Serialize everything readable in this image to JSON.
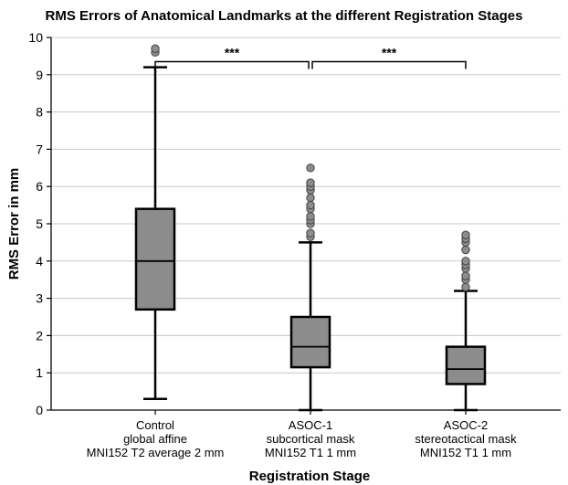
{
  "chart_data": {
    "type": "box",
    "title": "RMS Errors of Anatomical Landmarks at the different Registration Stages",
    "xlabel": "Registration Stage",
    "ylabel": "RMS Error in mm",
    "ylim": [
      0,
      10
    ],
    "yticks": [
      0,
      1,
      2,
      3,
      4,
      5,
      6,
      7,
      8,
      9,
      10
    ],
    "grid": "horizontal",
    "box_color": "#8c8c8c",
    "outlier_color": "#8c8c8c",
    "categories": [
      {
        "lines": [
          "Control",
          "global affine",
          "MNI152 T2 average 2 mm"
        ]
      },
      {
        "lines": [
          "ASOC-1",
          "subcortical mask",
          "MNI152 T1 1 mm"
        ]
      },
      {
        "lines": [
          "ASOC-2",
          "stereotactical mask",
          "MNI152 T1 1 mm"
        ]
      }
    ],
    "boxes": [
      {
        "min": 0.3,
        "q1": 2.7,
        "median": 4.0,
        "q3": 5.4,
        "max": 9.2,
        "outliers": [
          9.6,
          9.7
        ]
      },
      {
        "min": 0.0,
        "q1": 1.15,
        "median": 1.7,
        "q3": 2.5,
        "max": 4.5,
        "outliers": [
          4.65,
          4.75,
          5.0,
          5.1,
          5.2,
          5.4,
          5.5,
          5.7,
          5.9,
          6.0,
          6.1,
          6.5
        ]
      },
      {
        "min": 0.0,
        "q1": 0.7,
        "median": 1.1,
        "q3": 1.7,
        "max": 3.2,
        "outliers": [
          3.3,
          3.5,
          3.6,
          3.8,
          3.9,
          4.0,
          4.3,
          4.5,
          4.6,
          4.7
        ]
      }
    ],
    "significance": [
      {
        "from": 0,
        "to": 1,
        "label": "***"
      },
      {
        "from": 1,
        "to": 2,
        "label": "***"
      }
    ]
  }
}
